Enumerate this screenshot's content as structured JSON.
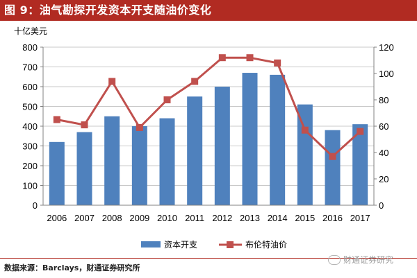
{
  "header": {
    "title": "图 9：油气勘探开发资本开支随油价变化"
  },
  "footer": {
    "source": "数据来源：Barclays，财通证券研究所",
    "watermark": "财通证券研究"
  },
  "colors": {
    "title_bg": "#b12b22",
    "bar": "#4f81bd",
    "line": "#c0504d"
  },
  "chart_data": {
    "type": "bar",
    "title": "",
    "categories": [
      "2006",
      "2007",
      "2008",
      "2009",
      "2010",
      "2011",
      "2012",
      "2013",
      "2014",
      "2015",
      "2016",
      "2017"
    ],
    "ylabel": "十亿美元",
    "ylim": [
      0,
      800
    ],
    "yticks": [
      0,
      100,
      200,
      300,
      400,
      500,
      600,
      700,
      800
    ],
    "y2lim": [
      0,
      120
    ],
    "y2ticks": [
      0,
      20,
      40,
      60,
      80,
      100,
      120
    ],
    "grid": true,
    "legend_position": "bottom",
    "series": [
      {
        "name": "资本开支",
        "type": "bar",
        "axis": "left",
        "values": [
          320,
          370,
          450,
          400,
          440,
          550,
          600,
          670,
          660,
          510,
          380,
          410
        ]
      },
      {
        "name": "布伦特油价",
        "type": "line",
        "axis": "right",
        "values": [
          65,
          61,
          94,
          59,
          80,
          94,
          112,
          112,
          108,
          57,
          37,
          56
        ]
      }
    ]
  }
}
